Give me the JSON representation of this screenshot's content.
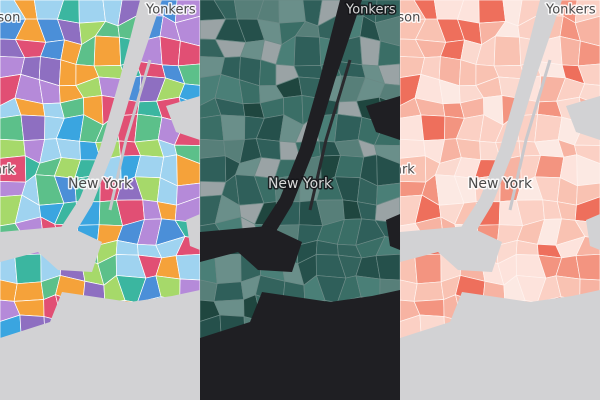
{
  "panels": [
    {
      "labels": {
        "top_left": "rson",
        "yonkers": "Yonkers",
        "left": "ark",
        "city": "New York"
      }
    },
    {
      "labels": {
        "yonkers": "Yonkers",
        "city": "New York"
      }
    },
    {
      "labels": {
        "top_left": "rson",
        "yonkers": "Yonkers",
        "left": "ark",
        "city": "New York"
      }
    }
  ]
}
